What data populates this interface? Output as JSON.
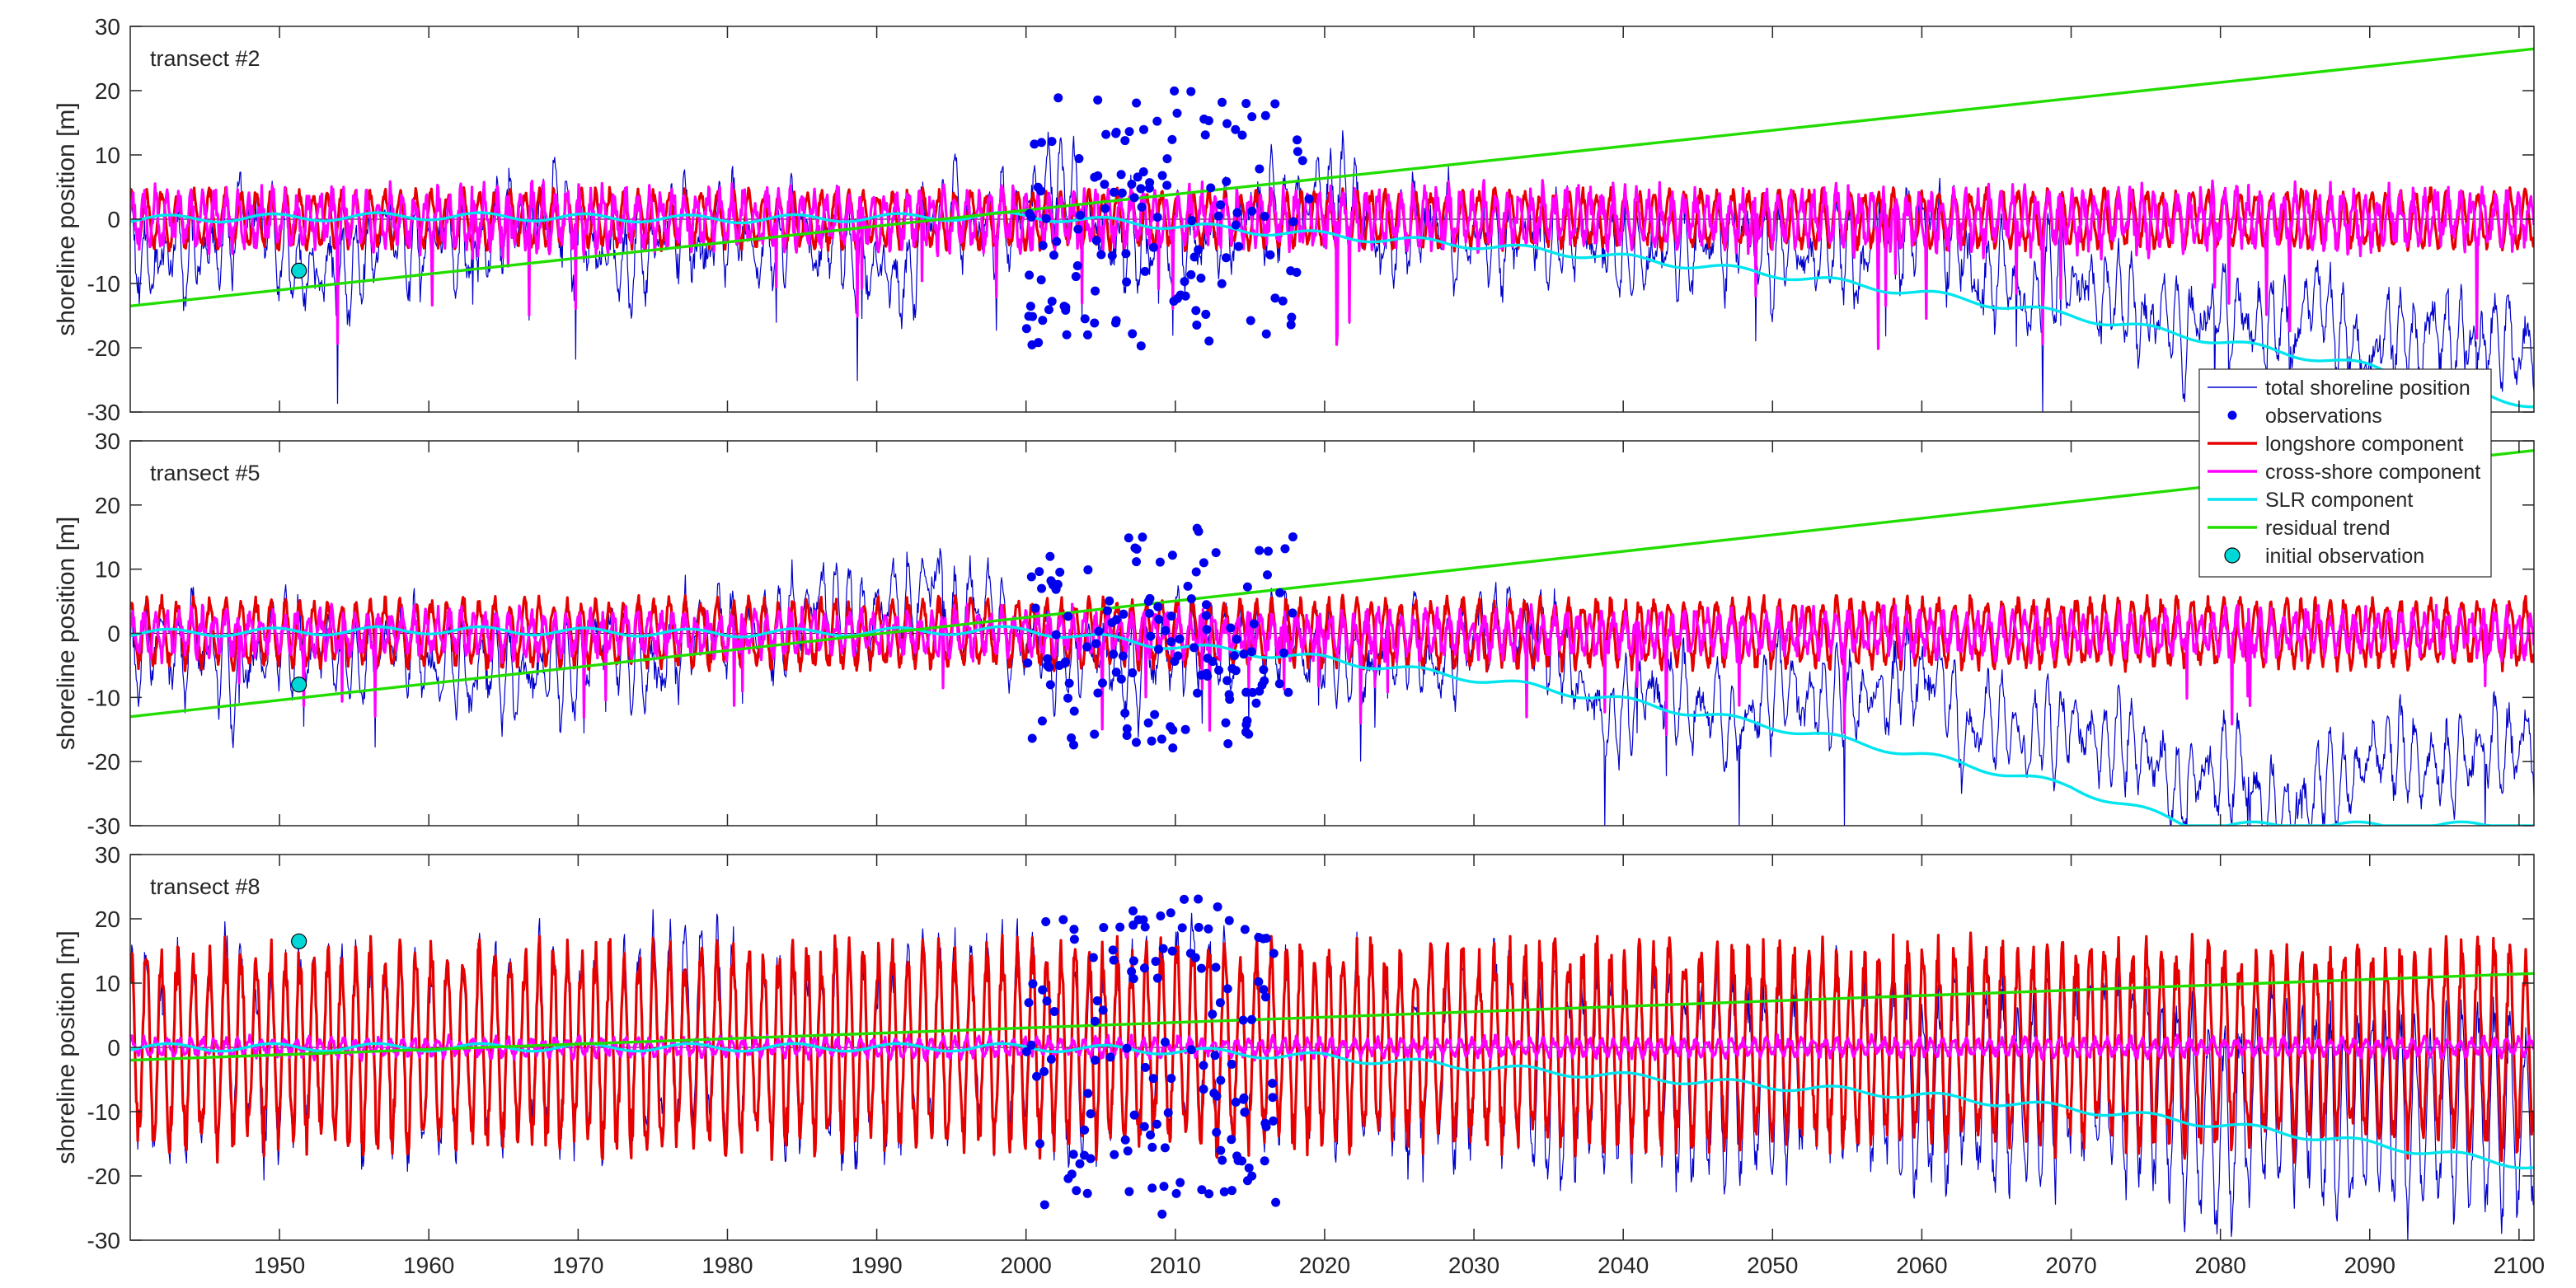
{
  "colors": {
    "total": "#0000cc",
    "observations": "#0000ee",
    "longshore": "#e60000",
    "crossshore": "#ff00ff",
    "slr": "#00e5ee",
    "residual": "#22dd00",
    "initial": "#00d8d8",
    "axis": "#262626",
    "zero_line": "#000000"
  },
  "legend": {
    "placement": "right, between top and middle panel",
    "items": [
      {
        "key": "total",
        "label": "total shoreline position",
        "marker": "line-thin"
      },
      {
        "key": "observations",
        "label": "observations",
        "marker": "dot"
      },
      {
        "key": "longshore",
        "label": "longshore component",
        "marker": "line-thick"
      },
      {
        "key": "crossshore",
        "label": "cross-shore component",
        "marker": "line-thick"
      },
      {
        "key": "slr",
        "label": "SLR component",
        "marker": "line-thick"
      },
      {
        "key": "residual",
        "label": "residual trend",
        "marker": "line-thick"
      },
      {
        "key": "initial",
        "label": "initial observation",
        "marker": "circle"
      }
    ]
  },
  "chart_data": [
    {
      "type": "line",
      "panel_label": "transect #2",
      "xlabel": "",
      "ylabel": "shoreline position [m]",
      "xlim": [
        1940,
        2101
      ],
      "ylim": [
        -30,
        30
      ],
      "xticks": [
        1950,
        1960,
        1970,
        1980,
        1990,
        2000,
        2010,
        2020,
        2030,
        2040,
        2050,
        2060,
        2070,
        2080,
        2090,
        2100
      ],
      "yticks": [
        -30,
        -20,
        -10,
        0,
        10,
        20,
        30
      ],
      "show_xtick_labels": false,
      "grid": false,
      "initial_observation": {
        "x": 1951.3,
        "y": -8
      },
      "residual_trend": {
        "x": [
          1940,
          2101
        ],
        "y": [
          -13.5,
          26.5
        ]
      },
      "slr_component": {
        "x": [
          1940,
          1960,
          1980,
          2000,
          2010,
          2020,
          2030,
          2040,
          2050,
          2060,
          2070,
          2080,
          2090,
          2101
        ],
        "y": [
          0,
          0.5,
          0,
          0.5,
          -1,
          -2.5,
          -4,
          -6,
          -8.5,
          -11.5,
          -15,
          -19,
          -23,
          -29
        ]
      },
      "longshore_component": {
        "amplitude": 5,
        "description": "seasonal oscillation around 0 over the full period"
      },
      "crossshore_component": {
        "amplitude": 7,
        "description": "oscillation around 0 with storm drops to about -20 (lowest -30 near 1974)"
      },
      "total_shoreline_position": {
        "description": "sum of all components, ranges about -28 to 18"
      },
      "observations": {
        "x_range": [
          2000,
          2019
        ],
        "y_range": [
          -20,
          20
        ]
      }
    },
    {
      "type": "line",
      "panel_label": "transect #5",
      "xlabel": "",
      "ylabel": "shoreline position [m]",
      "xlim": [
        1940,
        2101
      ],
      "ylim": [
        -30,
        30
      ],
      "xticks": [
        1950,
        1960,
        1970,
        1980,
        1990,
        2000,
        2010,
        2020,
        2030,
        2040,
        2050,
        2060,
        2070,
        2080,
        2090,
        2100
      ],
      "yticks": [
        -30,
        -20,
        -10,
        0,
        10,
        20,
        30
      ],
      "show_xtick_labels": false,
      "grid": false,
      "initial_observation": {
        "x": 1951.3,
        "y": -8
      },
      "residual_trend": {
        "x": [
          1940,
          2101
        ],
        "y": [
          -13,
          28.5
        ]
      },
      "slr_component": {
        "x": [
          1940,
          1960,
          1980,
          2000,
          2010,
          2020,
          2030,
          2040,
          2050,
          2060,
          2070,
          2078,
          2101
        ],
        "y": [
          0,
          0.5,
          0,
          0.5,
          -2,
          -4,
          -7,
          -10.5,
          -14.5,
          -19,
          -24,
          -30,
          -30
        ]
      },
      "longshore_component": {
        "amplitude": 6,
        "description": "seasonal oscillation around 0 over the full period"
      },
      "crossshore_component": {
        "amplitude": 5,
        "description": "oscillation around 0 with storm drops to about -20 (lowest -30 near 1974)"
      },
      "total_shoreline_position": {
        "description": "sum of all components, ranges about -30 to 12"
      },
      "observations": {
        "x_range": [
          2000,
          2018
        ],
        "y_range": [
          -18,
          17
        ]
      }
    },
    {
      "type": "line",
      "panel_label": "transect #8",
      "xlabel": "",
      "ylabel": "shoreline position [m]",
      "xlim": [
        1940,
        2101
      ],
      "ylim": [
        -30,
        30
      ],
      "xticks": [
        1950,
        1960,
        1970,
        1980,
        1990,
        2000,
        2010,
        2020,
        2030,
        2040,
        2050,
        2060,
        2070,
        2080,
        2090,
        2100
      ],
      "yticks": [
        -30,
        -20,
        -10,
        0,
        10,
        20,
        30
      ],
      "show_xtick_labels": true,
      "grid": false,
      "initial_observation": {
        "x": 1951.3,
        "y": 16.5
      },
      "residual_trend": {
        "x": [
          1940,
          2101
        ],
        "y": [
          -2,
          11.5
        ]
      },
      "slr_component": {
        "x": [
          1940,
          1960,
          1980,
          2000,
          2010,
          2020,
          2030,
          2040,
          2050,
          2060,
          2070,
          2080,
          2090,
          2101
        ],
        "y": [
          0,
          0,
          0,
          0,
          -0.5,
          -1.5,
          -3,
          -4.5,
          -6,
          -7.5,
          -9.5,
          -12,
          -15,
          -18.5
        ]
      },
      "longshore_component": {
        "amplitude": 18,
        "description": "strong seasonal oscillation between about -25 and 25"
      },
      "crossshore_component": {
        "amplitude": 2,
        "description": "small oscillation around 0"
      },
      "total_shoreline_position": {
        "description": "sum of all components, ranges about -27 to 24"
      },
      "observations": {
        "x_range": [
          2000,
          2017
        ],
        "y_range": [
          -26,
          24
        ]
      }
    }
  ]
}
